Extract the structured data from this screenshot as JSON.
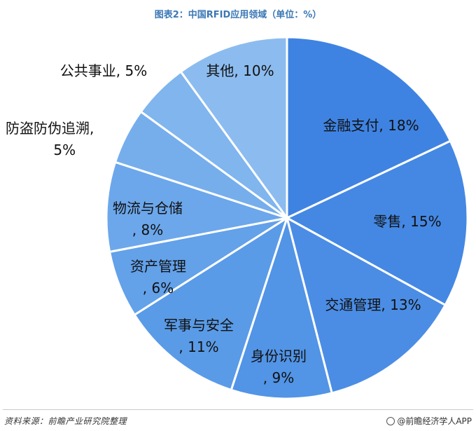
{
  "title": "图表2：中国RFID应用领域（单位：%）",
  "chart_data": {
    "type": "pie",
    "slices": [
      {
        "label": "金融支付",
        "value": 18,
        "text": "金融支付, 18%",
        "color": "#3f83e2"
      },
      {
        "label": "零售",
        "value": 15,
        "text": "零售, 15%",
        "color": "#4488e3"
      },
      {
        "label": "交通管理",
        "value": 13,
        "text": "交通管理, 13%",
        "color": "#4b8de5"
      },
      {
        "label": "身份识别",
        "value": 9,
        "text": "身份识别, 9%",
        "color": "#5294e6"
      },
      {
        "label": "军事与安全",
        "value": 11,
        "text": "军事与安全, 11%",
        "color": "#5a9be7"
      },
      {
        "label": "资产管理",
        "value": 6,
        "text": "资产管理, 6%",
        "color": "#63a1e9"
      },
      {
        "label": "物流与仓储",
        "value": 8,
        "text": "物流与仓储, 8%",
        "color": "#6ca7eb"
      },
      {
        "label": "防盗防伪追溯",
        "value": 5,
        "text": "防盗防伪追溯, 5%",
        "color": "#76aeec"
      },
      {
        "label": "公共事业",
        "value": 5,
        "text": "公共事业, 5%",
        "color": "#80b5ee"
      },
      {
        "label": "其他",
        "value": 10,
        "text": "其他, 10%",
        "color": "#8cbcef"
      }
    ]
  },
  "footer": {
    "source": "资料来源：前瞻产业研究院整理",
    "brand": "@前瞻经济学人APP"
  }
}
